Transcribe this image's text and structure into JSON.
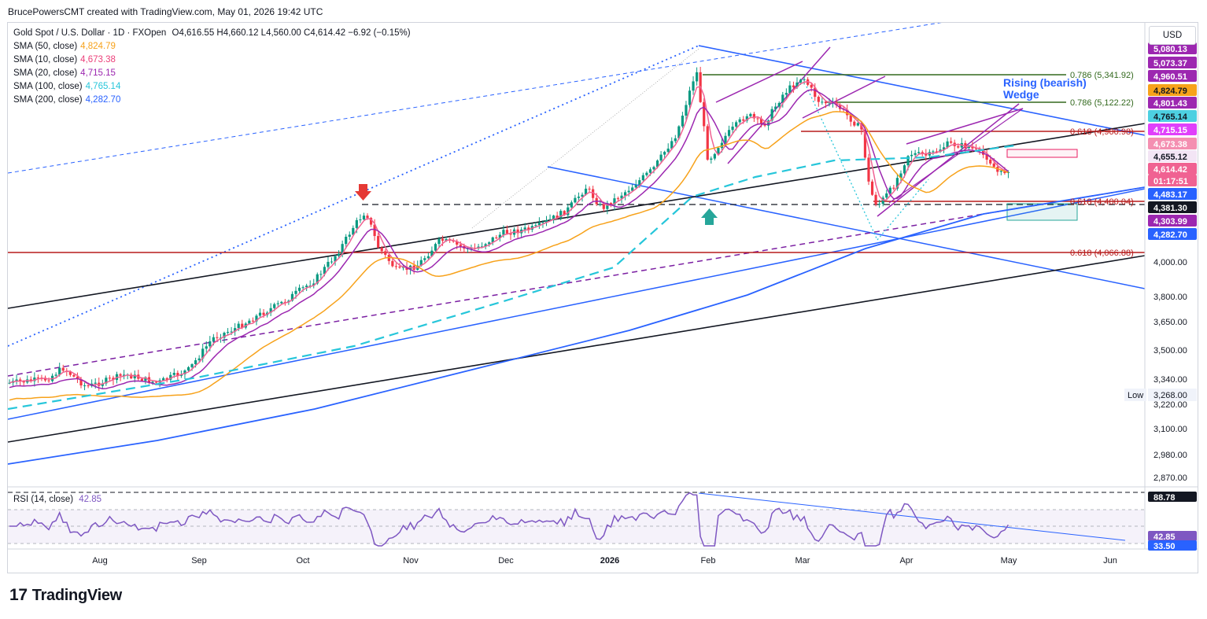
{
  "header": {
    "credit": "BrucePowersCMT created with TradingView.com, May 01, 2026 19:42 UTC",
    "symbol": "Gold Spot / U.S. Dollar · 1D · FXOpen",
    "ohlc": "O4,616.55 H4,660.12 L4,560.00 C4,614.42 −6.92 (−0.15%)",
    "currency": "USD"
  },
  "indicators": [
    {
      "label": "SMA (50, close)",
      "value": "4,824.79",
      "color": "#f7a21b"
    },
    {
      "label": "SMA (10, close)",
      "value": "4,673.38",
      "color": "#ec407a"
    },
    {
      "label": "SMA (20, close)",
      "value": "4,715.15",
      "color": "#9c27b0"
    },
    {
      "label": "SMA (100, close)",
      "value": "4,765.14",
      "color": "#26c6da"
    },
    {
      "label": "SMA (200, close)",
      "value": "4,282.70",
      "color": "#2962ff"
    }
  ],
  "rsi": {
    "label": "RSI (14, close)",
    "value": "42.85",
    "color": "#7e57c2"
  },
  "brand": {
    "logo": "17",
    "name": "TradingView"
  },
  "chart_data": {
    "type": "candlestick",
    "symbol": "XAUUSD",
    "timeframe": "1D",
    "x_ticks": [
      "Aug",
      "Sep",
      "Oct",
      "Nov",
      "Dec",
      "2026",
      "Feb",
      "Mar",
      "Apr",
      "May",
      "Jun"
    ],
    "y_ticks": [
      "4,000.00",
      "3,800.00",
      "3,650.00",
      "3,500.00",
      "3,340.00",
      "3,220.00",
      "3,100.00",
      "2,980.00",
      "2,870.00"
    ],
    "price_labels": [
      {
        "text": "5,080.13",
        "bg": "#9c27b0",
        "fg": "#ffffff"
      },
      {
        "text": "5,073.37",
        "bg": "#9c27b0",
        "fg": "#ffffff"
      },
      {
        "text": "4,960.51",
        "bg": "#9c27b0",
        "fg": "#ffffff"
      },
      {
        "text": "4,824.79",
        "bg": "#f7a21b",
        "fg": "#131722"
      },
      {
        "text": "4,801.43",
        "bg": "#9c27b0",
        "fg": "#ffffff"
      },
      {
        "text": "4,765.14",
        "bg": "#4dd0e1",
        "fg": "#131722"
      },
      {
        "text": "4,715.15",
        "bg": "#e040fb",
        "fg": "#ffffff"
      },
      {
        "text": "4,673.38",
        "bg": "#f48fb1",
        "fg": "#ffffff"
      },
      {
        "text": "4,655.12",
        "bg": "#f3e5f5",
        "fg": "#131722"
      },
      {
        "text": "4,614.42",
        "bg": "#f06292",
        "fg": "#ffffff"
      },
      {
        "text": "01:17:51",
        "bg": "#f06292",
        "fg": "#ffffff"
      },
      {
        "text": "4,483.17",
        "bg": "#2962ff",
        "fg": "#ffffff"
      },
      {
        "text": "4,381.30",
        "bg": "#131722",
        "fg": "#ffffff"
      },
      {
        "text": "4,303.99",
        "bg": "#9c27b0",
        "fg": "#ffffff"
      },
      {
        "text": "4,282.70",
        "bg": "#2962ff",
        "fg": "#ffffff"
      }
    ],
    "rsi_axis_labels": [
      {
        "text": "88.78",
        "bg": "#131722",
        "fg": "#ffffff"
      },
      {
        "text": "42.85",
        "bg": "#7e57c2",
        "fg": "#ffffff"
      },
      {
        "text": "33.50",
        "bg": "#2962ff",
        "fg": "#ffffff"
      }
    ],
    "low_label": {
      "tag": "Low",
      "value": "3,268.00"
    },
    "fib_levels": [
      {
        "text": "0.786 (5,341.92)",
        "color": "#33691e"
      },
      {
        "text": "0.786 (5,122.22)",
        "color": "#33691e"
      },
      {
        "text": "0.618 (4,900.98)",
        "color": "#b71c1c"
      },
      {
        "text": "0.618 (4,400.04)",
        "color": "#b71c1c"
      },
      {
        "text": "0.618 (4,066.88)",
        "color": "#b71c1c"
      }
    ],
    "annotation": {
      "text": "Rising (bearish)\nWedge",
      "color": "#2962ff"
    },
    "grid": false,
    "rsi_bands": [
      70,
      30
    ]
  }
}
